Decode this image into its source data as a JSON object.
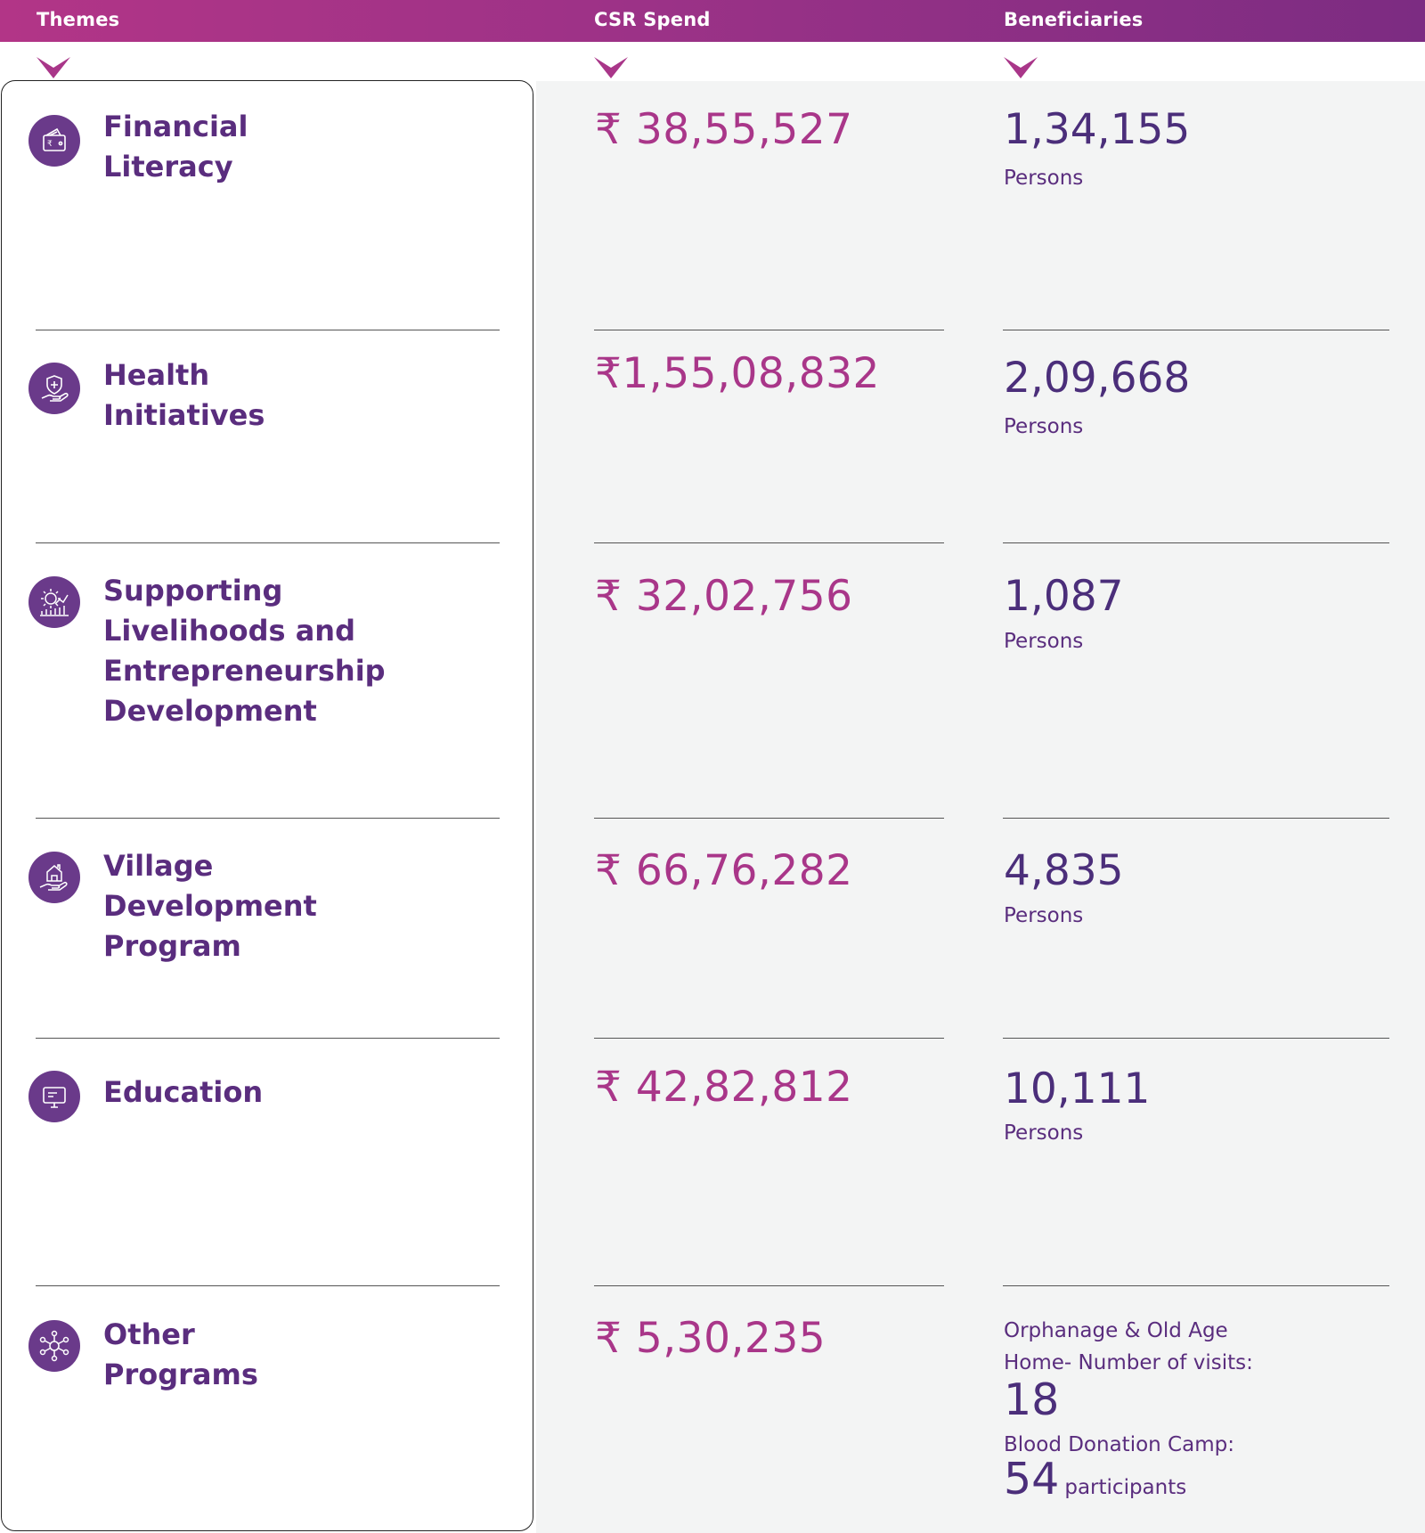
{
  "header": {
    "themes_label": "Themes",
    "spend_label": "CSR Spend",
    "beneficiaries_label": "Beneficiaries"
  },
  "colors": {
    "header_gradient_start": "#b23587",
    "header_gradient_end": "#7c2c82",
    "chevron": "#a93689",
    "theme_text": "#5a2d7e",
    "spend_text": "#a93689",
    "beneficiary_text": "#4b2e7a",
    "panel_background": "#f3f4f4"
  },
  "rows": [
    {
      "theme_line1": "Financial",
      "theme_line2": "Literacy",
      "icon": "wallet-rupee-icon",
      "spend": "₹ 38,55,527",
      "beneficiaries": "1,34,155",
      "unit": "Persons"
    },
    {
      "theme_line1": "Health",
      "theme_line2": "Initiatives",
      "icon": "health-shield-hand-icon",
      "spend": "₹1,55,08,832",
      "beneficiaries": "2,09,668",
      "unit": "Persons"
    },
    {
      "theme_line1": "Supporting",
      "theme_line2": "Livelihoods and",
      "theme_line3": "Entrepreneurship",
      "theme_line4": "Development",
      "icon": "gear-growth-chart-icon",
      "spend": "₹ 32,02,756",
      "beneficiaries": "1,087",
      "unit": "Persons"
    },
    {
      "theme_line1": "Village",
      "theme_line2": "Development",
      "theme_line3": "Program",
      "icon": "house-hand-icon",
      "spend": "₹ 66,76,282",
      "beneficiaries": "4,835",
      "unit": "Persons"
    },
    {
      "theme_line1": "Education",
      "icon": "presentation-board-icon",
      "spend": "₹ 42,82,812",
      "beneficiaries": "10,111",
      "unit": "Persons"
    },
    {
      "theme_line1": "Other",
      "theme_line2": "Programs",
      "icon": "network-nodes-icon",
      "spend": "₹ 5,30,235",
      "orphanage_line1": "Orphanage & Old Age",
      "orphanage_line2": "Home- Number of visits:",
      "orphanage_visits": "18",
      "blood_label": "Blood Donation Camp:",
      "blood_count": "54",
      "blood_unit": "participants"
    }
  ]
}
